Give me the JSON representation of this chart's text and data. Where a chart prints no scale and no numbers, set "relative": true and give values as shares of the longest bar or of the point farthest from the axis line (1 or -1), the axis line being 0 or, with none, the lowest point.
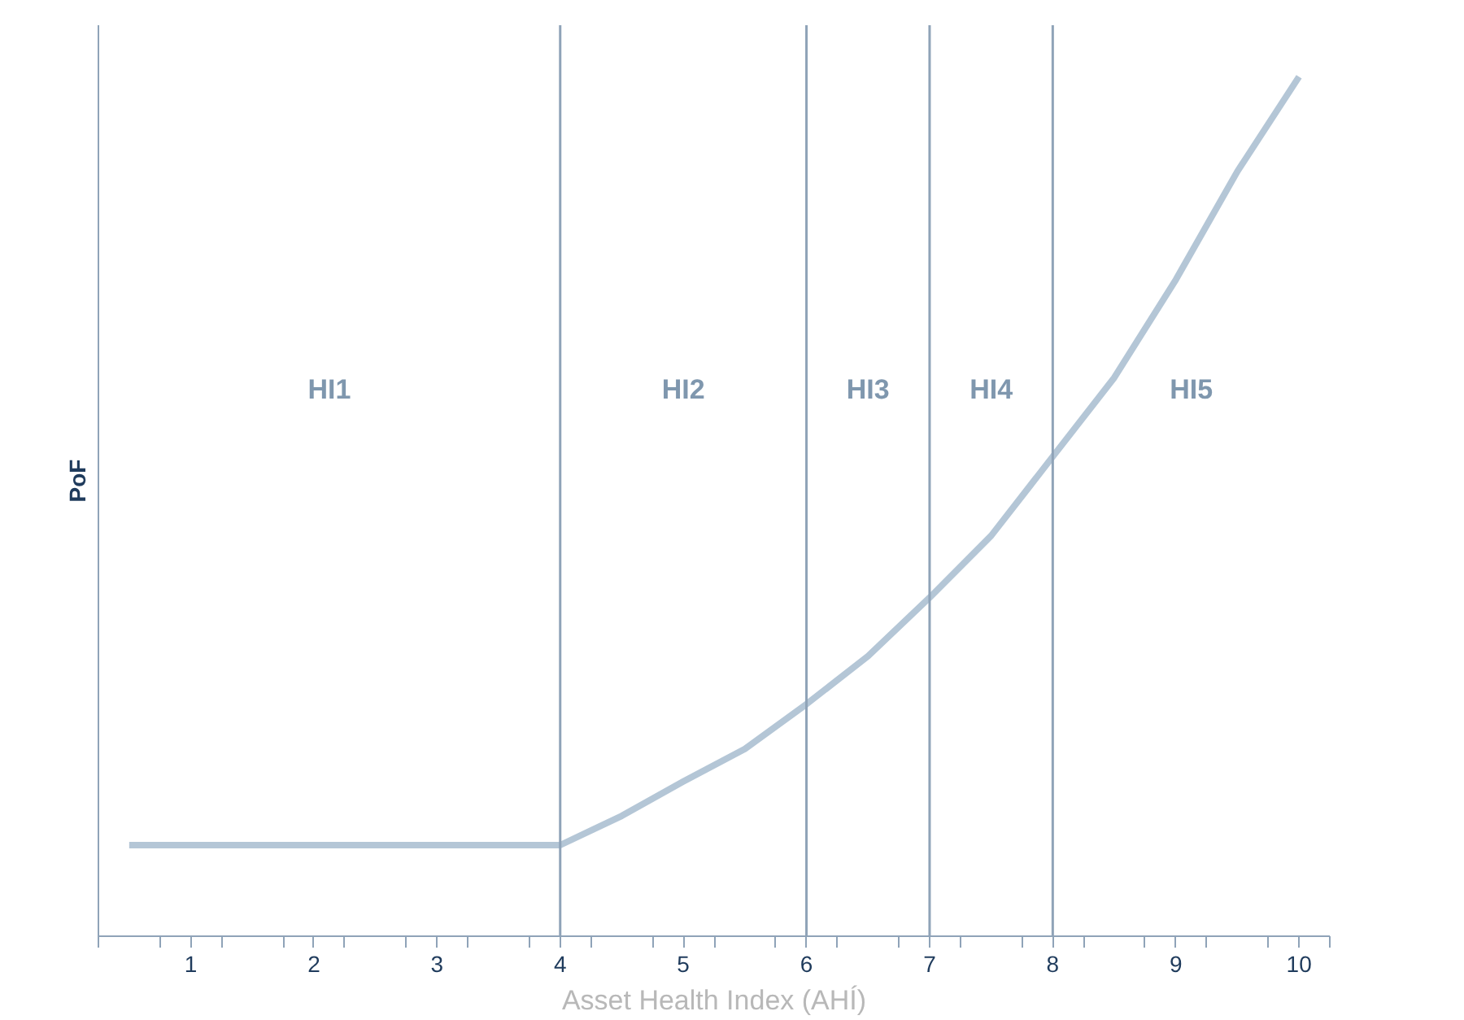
{
  "chart_data": {
    "type": "line",
    "xlabel": "Asset Health Index (AHÍ)",
    "ylabel": "PoF",
    "relative": true,
    "x": [
      0.5,
      4,
      4.5,
      5,
      5.5,
      6,
      6.5,
      7,
      7.5,
      8,
      8.5,
      9,
      9.5,
      10
    ],
    "series": [
      {
        "color": "#b4c6d6",
        "values": [
          0.106,
          0.106,
          0.14,
          0.18,
          0.218,
          0.27,
          0.326,
          0.394,
          0.466,
          0.558,
          0.65,
          0.764,
          0.89,
          1.0
        ]
      }
    ],
    "xlim": [
      0.25,
      10.25
    ],
    "xticks": [
      {
        "value": 0.25,
        "label": null
      },
      {
        "value": 0.75,
        "label": null
      },
      1,
      {
        "value": 1.25,
        "label": null
      },
      {
        "value": 1.75,
        "label": null
      },
      2,
      {
        "value": 2.25,
        "label": null
      },
      {
        "value": 2.75,
        "label": null
      },
      3,
      {
        "value": 3.25,
        "label": null
      },
      {
        "value": 3.75,
        "label": null
      },
      4,
      {
        "value": 4.25,
        "label": null
      },
      {
        "value": 4.75,
        "label": null
      },
      5,
      {
        "value": 5.25,
        "label": null
      },
      {
        "value": 5.75,
        "label": null
      },
      6,
      {
        "value": 6.25,
        "label": null
      },
      {
        "value": 6.75,
        "label": null
      },
      7,
      {
        "value": 7.25,
        "label": null
      },
      {
        "value": 7.75,
        "label": null
      },
      8,
      {
        "value": 8.25,
        "label": null
      },
      {
        "value": 8.75,
        "label": null
      },
      9,
      {
        "value": 9.25,
        "label": null
      },
      {
        "value": 9.75,
        "label": null
      },
      10,
      {
        "value": 10.25,
        "label": null
      }
    ],
    "ref_lines": [
      {
        "axis": "x",
        "value": 4,
        "color": "#8fa3b8"
      },
      {
        "axis": "x",
        "value": 6,
        "color": "#8fa3b8"
      },
      {
        "axis": "x",
        "value": 7,
        "color": "#8fa3b8"
      },
      {
        "axis": "x",
        "value": 8,
        "color": "#8fa3b8"
      }
    ],
    "annotations": [
      "HI1",
      "HI2",
      "HI3",
      "HI4",
      "HI5"
    ],
    "tick_labels": "x",
    "grid": false,
    "marker": "none",
    "line_style": "solid"
  }
}
